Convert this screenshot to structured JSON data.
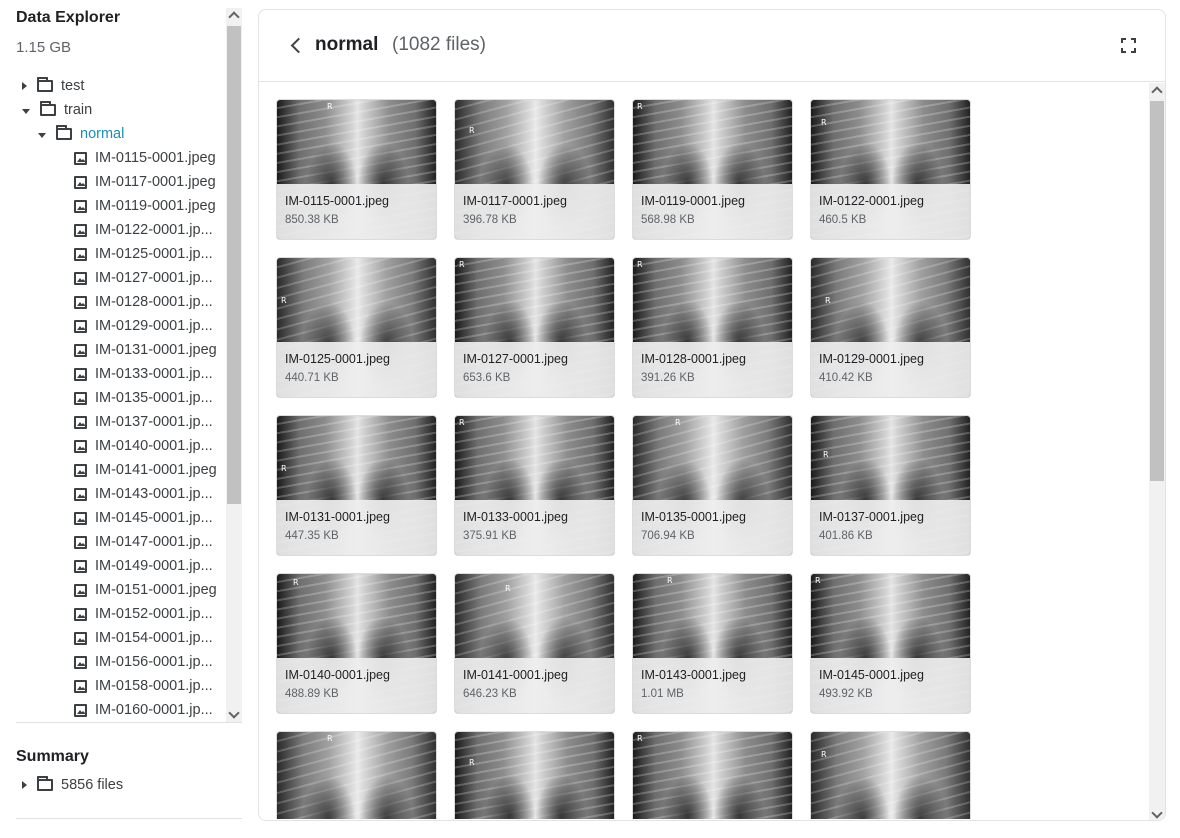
{
  "sidebar": {
    "title": "Data Explorer",
    "size": "1.15 GB",
    "folders": {
      "test": "test",
      "train": "train",
      "normal": "normal"
    },
    "files": [
      "IM-0115-0001.jpeg",
      "IM-0117-0001.jpeg",
      "IM-0119-0001.jpeg",
      "IM-0122-0001.jp...",
      "IM-0125-0001.jp...",
      "IM-0127-0001.jp...",
      "IM-0128-0001.jp...",
      "IM-0129-0001.jp...",
      "IM-0131-0001.jpeg",
      "IM-0133-0001.jp...",
      "IM-0135-0001.jp...",
      "IM-0137-0001.jp...",
      "IM-0140-0001.jp...",
      "IM-0141-0001.jpeg",
      "IM-0143-0001.jp...",
      "IM-0145-0001.jp...",
      "IM-0147-0001.jp...",
      "IM-0149-0001.jp...",
      "IM-0151-0001.jpeg",
      "IM-0152-0001.jp...",
      "IM-0154-0001.jp...",
      "IM-0156-0001.jp...",
      "IM-0158-0001.jp...",
      "IM-0160-0001.jp..."
    ],
    "summary_title": "Summary",
    "summary_files": "5856 files"
  },
  "header": {
    "title": "normal",
    "count": "(1082 files)"
  },
  "grid": {
    "marker": "R",
    "items": [
      {
        "name": "IM-0115-0001.jpeg",
        "size": "850.38 KB"
      },
      {
        "name": "IM-0117-0001.jpeg",
        "size": "396.78 KB"
      },
      {
        "name": "IM-0119-0001.jpeg",
        "size": "568.98 KB"
      },
      {
        "name": "IM-0122-0001.jpeg",
        "size": "460.5 KB"
      },
      {
        "name": "IM-0125-0001.jpeg",
        "size": "440.71 KB"
      },
      {
        "name": "IM-0127-0001.jpeg",
        "size": "653.6 KB"
      },
      {
        "name": "IM-0128-0001.jpeg",
        "size": "391.26 KB"
      },
      {
        "name": "IM-0129-0001.jpeg",
        "size": "410.42 KB"
      },
      {
        "name": "IM-0131-0001.jpeg",
        "size": "447.35 KB"
      },
      {
        "name": "IM-0133-0001.jpeg",
        "size": "375.91 KB"
      },
      {
        "name": "IM-0135-0001.jpeg",
        "size": "706.94 KB"
      },
      {
        "name": "IM-0137-0001.jpeg",
        "size": "401.86 KB"
      },
      {
        "name": "IM-0140-0001.jpeg",
        "size": "488.89 KB"
      },
      {
        "name": "IM-0141-0001.jpeg",
        "size": "646.23 KB"
      },
      {
        "name": "IM-0143-0001.jpeg",
        "size": "1.01 MB"
      },
      {
        "name": "IM-0145-0001.jpeg",
        "size": "493.92 KB"
      }
    ]
  },
  "colors": {
    "accent": "#1a8fb4",
    "text": "#202124",
    "muted": "#5f6368",
    "border": "#e3e3e3"
  },
  "icons": {
    "folder": "folder-icon",
    "file": "image-file-icon",
    "back": "chevron-left-icon",
    "fullscreen": "fullscreen-icon"
  }
}
